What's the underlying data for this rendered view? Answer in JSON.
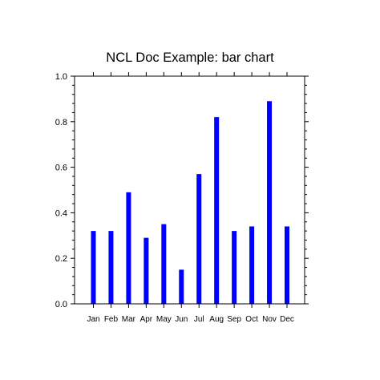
{
  "chart_data": {
    "type": "bar",
    "title": "NCL Doc Example: bar chart",
    "xlabel": "",
    "ylabel": "",
    "categories": [
      "Jan",
      "Feb",
      "Mar",
      "Apr",
      "May",
      "Jun",
      "Jul",
      "Aug",
      "Sep",
      "Oct",
      "Nov",
      "Dec"
    ],
    "values": [
      0.32,
      0.32,
      0.49,
      0.29,
      0.35,
      0.15,
      0.57,
      0.82,
      0.32,
      0.34,
      0.89,
      0.34
    ],
    "ylim": [
      0.0,
      1.0
    ],
    "yticks": [
      "0.0",
      "0.2",
      "0.4",
      "0.6",
      "0.8",
      "1.0"
    ],
    "grid": false,
    "bar_color": "#0000ff"
  }
}
